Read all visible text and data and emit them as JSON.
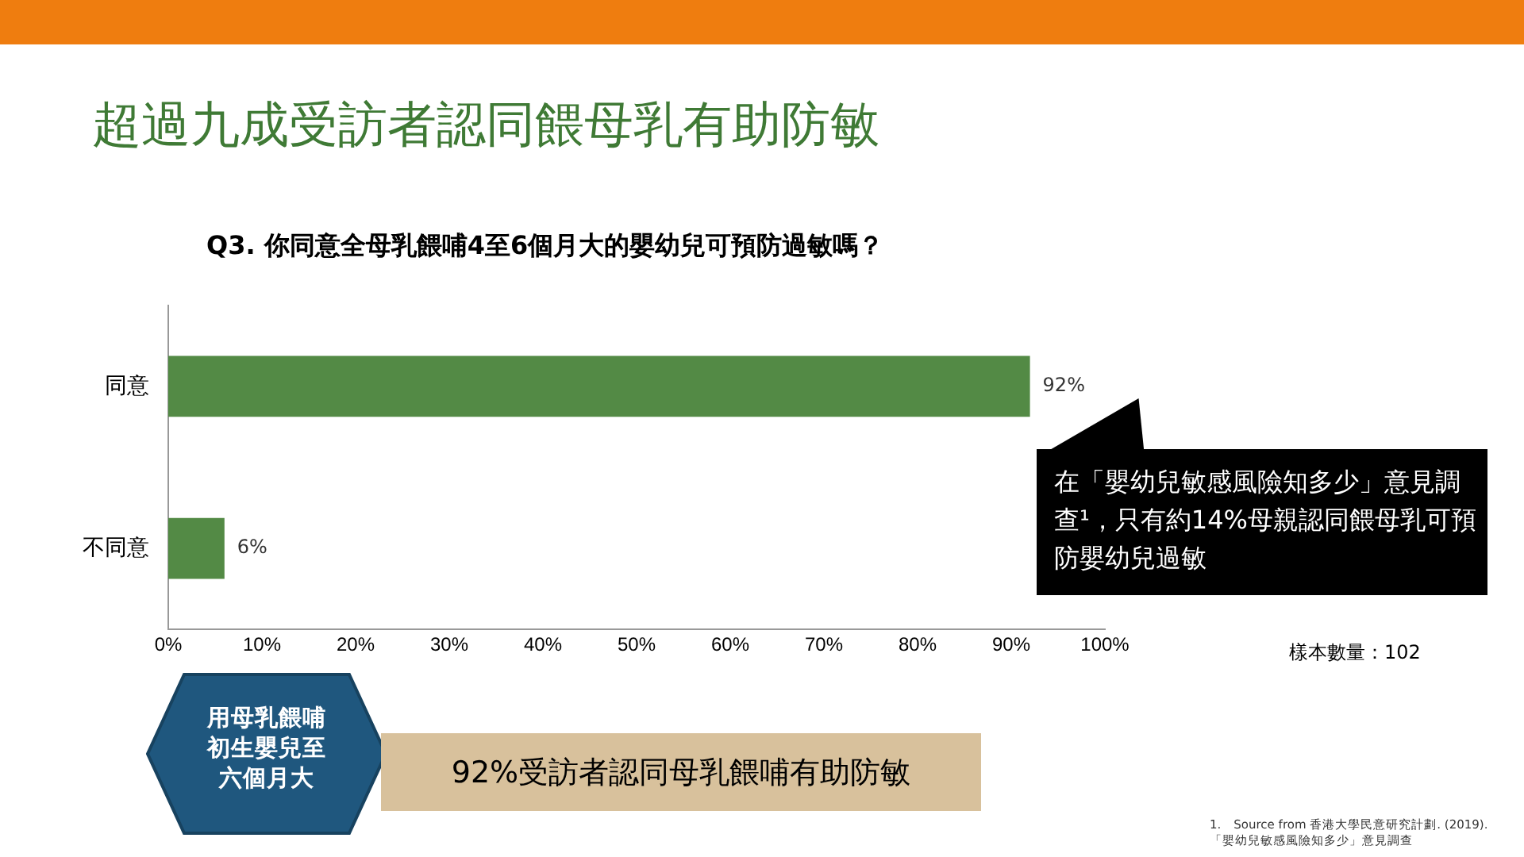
{
  "chart_data": {
    "type": "bar",
    "orientation": "horizontal",
    "title": "超過九成受訪者認同餵母乳有助防敏",
    "subtitle": "Q3. 你同意全母乳餵哺4至6個月大的嬰幼兒可預防過敏嗎？",
    "categories": [
      "同意",
      "不同意"
    ],
    "series": [
      {
        "color": "#538a45",
        "values": [
          92,
          6
        ],
        "value_labels": [
          "92%",
          "6%"
        ]
      }
    ],
    "xlim": [
      0,
      100
    ],
    "xticks": [
      {
        "value": 0,
        "label": "0%"
      },
      {
        "value": 10,
        "label": "10%"
      },
      {
        "value": 20,
        "label": "20%"
      },
      {
        "value": 30,
        "label": "30%"
      },
      {
        "value": 40,
        "label": "40%"
      },
      {
        "value": 50,
        "label": "50%"
      },
      {
        "value": 60,
        "label": "60%"
      },
      {
        "value": 70,
        "label": "70%"
      },
      {
        "value": 80,
        "label": "80%"
      },
      {
        "value": 90,
        "label": "90%"
      },
      {
        "value": 100,
        "label": "100%"
      }
    ],
    "grid": false,
    "legend": false,
    "annotations": [
      "在「嬰幼兒敏感風險知多少」意見調查¹，只有約14%母親認同餵母乳可預防嬰幼兒過敏",
      "樣本數量：102",
      "用母乳餵哺初生嬰兒至六個月大",
      "92%受訪者認同母乳餵哺有助防敏",
      "1.　Source from 香港大學民意研究計劃. (2019). 「嬰幼兒敏感風險知多少」意見調查"
    ]
  }
}
